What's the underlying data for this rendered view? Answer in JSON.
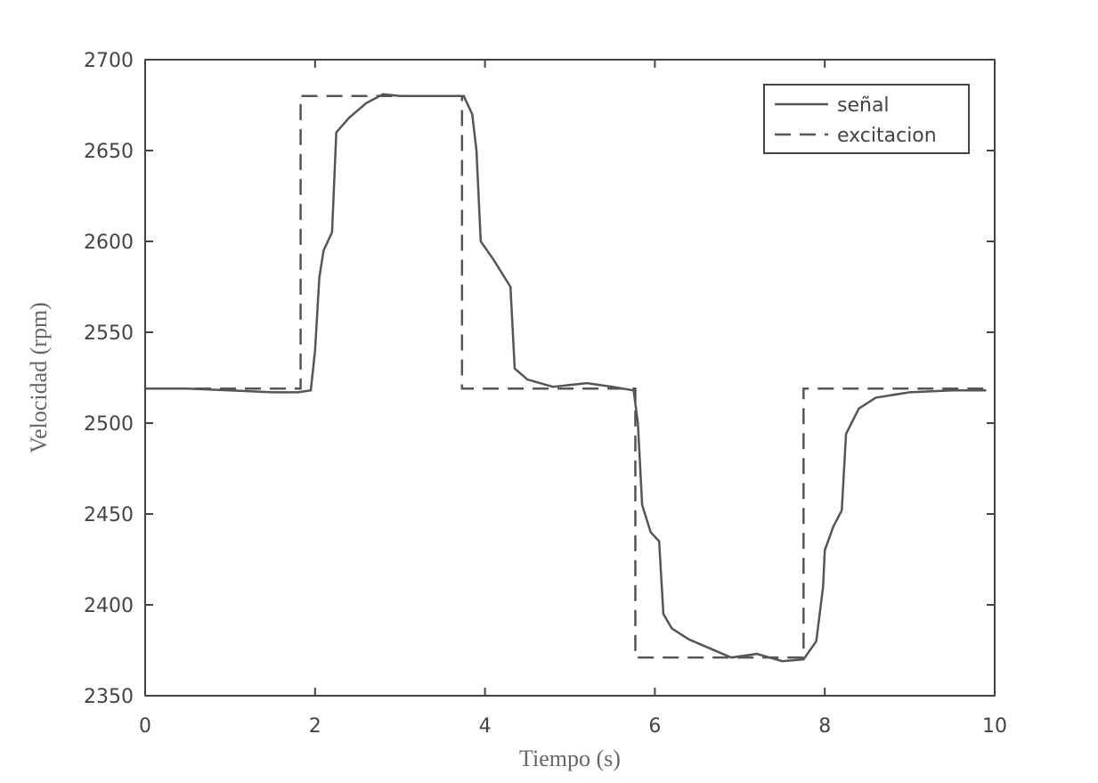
{
  "chart_data": {
    "type": "line",
    "xlabel": "Tiempo (s)",
    "ylabel": "Velocidad (rpm)",
    "xlim": [
      0,
      10
    ],
    "ylim": [
      2350,
      2700
    ],
    "xticks": [
      0,
      2,
      4,
      6,
      8,
      10
    ],
    "yticks": [
      2350,
      2400,
      2450,
      2500,
      2550,
      2600,
      2650,
      2700
    ],
    "legend": "upper-right",
    "series": [
      {
        "name": "señal",
        "color": "#555555",
        "dash": "solid",
        "x": [
          0,
          0.5,
          1.0,
          1.5,
          1.8,
          1.95,
          2.0,
          2.05,
          2.1,
          2.2,
          2.25,
          2.4,
          2.6,
          2.8,
          3.0,
          3.5,
          3.75,
          3.85,
          3.9,
          3.95,
          4.1,
          4.3,
          4.35,
          4.5,
          4.8,
          5.2,
          5.5,
          5.75,
          5.8,
          5.85,
          5.95,
          6.05,
          6.1,
          6.2,
          6.4,
          6.6,
          6.9,
          7.2,
          7.5,
          7.75,
          7.9,
          7.98,
          8.0,
          8.1,
          8.2,
          8.25,
          8.4,
          8.6,
          9.0,
          9.5,
          9.9
        ],
        "values": [
          2519,
          2519,
          2518,
          2517,
          2517,
          2518,
          2540,
          2580,
          2595,
          2605,
          2660,
          2668,
          2676,
          2681,
          2680,
          2680,
          2680,
          2670,
          2650,
          2600,
          2590,
          2575,
          2530,
          2524,
          2520,
          2522,
          2520,
          2518,
          2500,
          2455,
          2440,
          2435,
          2395,
          2387,
          2381,
          2377,
          2371,
          2373,
          2369,
          2370,
          2380,
          2410,
          2430,
          2443,
          2452,
          2494,
          2508,
          2514,
          2517,
          2518,
          2518
        ]
      },
      {
        "name": "excitacion",
        "color": "#555555",
        "dash": "dashed",
        "x": [
          0,
          1.83,
          1.83,
          3.73,
          3.73,
          5.77,
          5.77,
          7.75,
          7.75,
          9.9
        ],
        "values": [
          2519,
          2519,
          2680,
          2680,
          2519,
          2519,
          2371,
          2371,
          2519,
          2519
        ]
      }
    ]
  }
}
